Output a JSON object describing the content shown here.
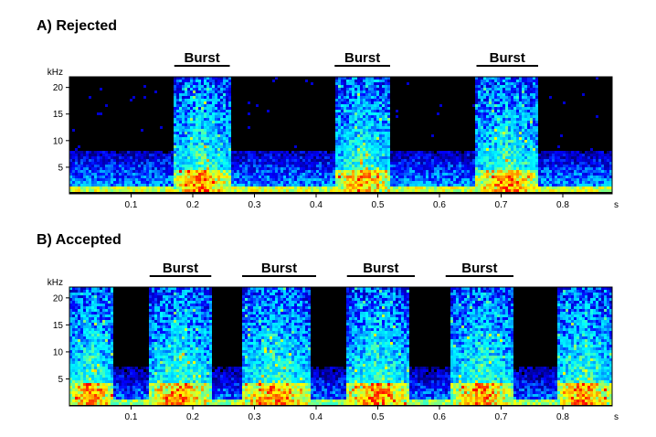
{
  "panels": [
    {
      "title": "A) Rejected",
      "y_unit": "kHz",
      "x_unit": "s",
      "x_ticks": [
        "0.1",
        "0.2",
        "0.3",
        "0.4",
        "0.5",
        "0.6",
        "0.7",
        "0.8"
      ],
      "y_ticks": [
        "5",
        "10",
        "15",
        "20"
      ],
      "burst_label": "Burst"
    },
    {
      "title": "B) Accepted",
      "y_unit": "kHz",
      "x_unit": "s",
      "x_ticks": [
        "0.1",
        "0.2",
        "0.3",
        "0.4",
        "0.5",
        "0.6",
        "0.7",
        "0.8"
      ],
      "y_ticks": [
        "5",
        "10",
        "15",
        "20"
      ],
      "burst_label": "Burst"
    }
  ],
  "chart_data": [
    {
      "type": "heatmap",
      "title": "A) Rejected",
      "xlabel": "s",
      "ylabel": "kHz",
      "xlim": [
        0.0,
        0.88
      ],
      "ylim": [
        0,
        22
      ],
      "x_ticks": [
        0.1,
        0.2,
        0.3,
        0.4,
        0.5,
        0.6,
        0.7,
        0.8
      ],
      "y_ticks": [
        5,
        10,
        15,
        20
      ],
      "bursts": [
        {
          "label": "Burst",
          "start": 0.17,
          "end": 0.26
        },
        {
          "label": "Burst",
          "start": 0.43,
          "end": 0.52
        },
        {
          "label": "Burst",
          "start": 0.66,
          "end": 0.76
        }
      ],
      "colormap": [
        "#000000",
        "#00008b",
        "#0000ff",
        "#00bfff",
        "#00ffff",
        "#7fff7f",
        "#ffff00",
        "#ff7f00",
        "#ff0000"
      ]
    },
    {
      "type": "heatmap",
      "title": "B) Accepted",
      "xlabel": "s",
      "ylabel": "kHz",
      "xlim": [
        0.0,
        0.88
      ],
      "ylim": [
        0,
        22
      ],
      "x_ticks": [
        0.1,
        0.2,
        0.3,
        0.4,
        0.5,
        0.6,
        0.7,
        0.8
      ],
      "y_ticks": [
        5,
        10,
        15,
        20
      ],
      "bursts": [
        {
          "label": "Burst",
          "start": 0.13,
          "end": 0.23
        },
        {
          "label": "Burst",
          "start": 0.28,
          "end": 0.4
        },
        {
          "label": "Burst",
          "start": 0.45,
          "end": 0.56
        },
        {
          "label": "Burst",
          "start": 0.61,
          "end": 0.72
        }
      ],
      "active_segments": [
        {
          "start": 0.0,
          "end": 0.07
        },
        {
          "start": 0.13,
          "end": 0.23
        },
        {
          "start": 0.28,
          "end": 0.39
        },
        {
          "start": 0.45,
          "end": 0.55
        },
        {
          "start": 0.62,
          "end": 0.72
        },
        {
          "start": 0.79,
          "end": 0.88
        }
      ],
      "colormap": [
        "#000000",
        "#00008b",
        "#0000ff",
        "#00bfff",
        "#00ffff",
        "#7fff7f",
        "#ffff00",
        "#ff7f00",
        "#ff0000"
      ]
    }
  ]
}
